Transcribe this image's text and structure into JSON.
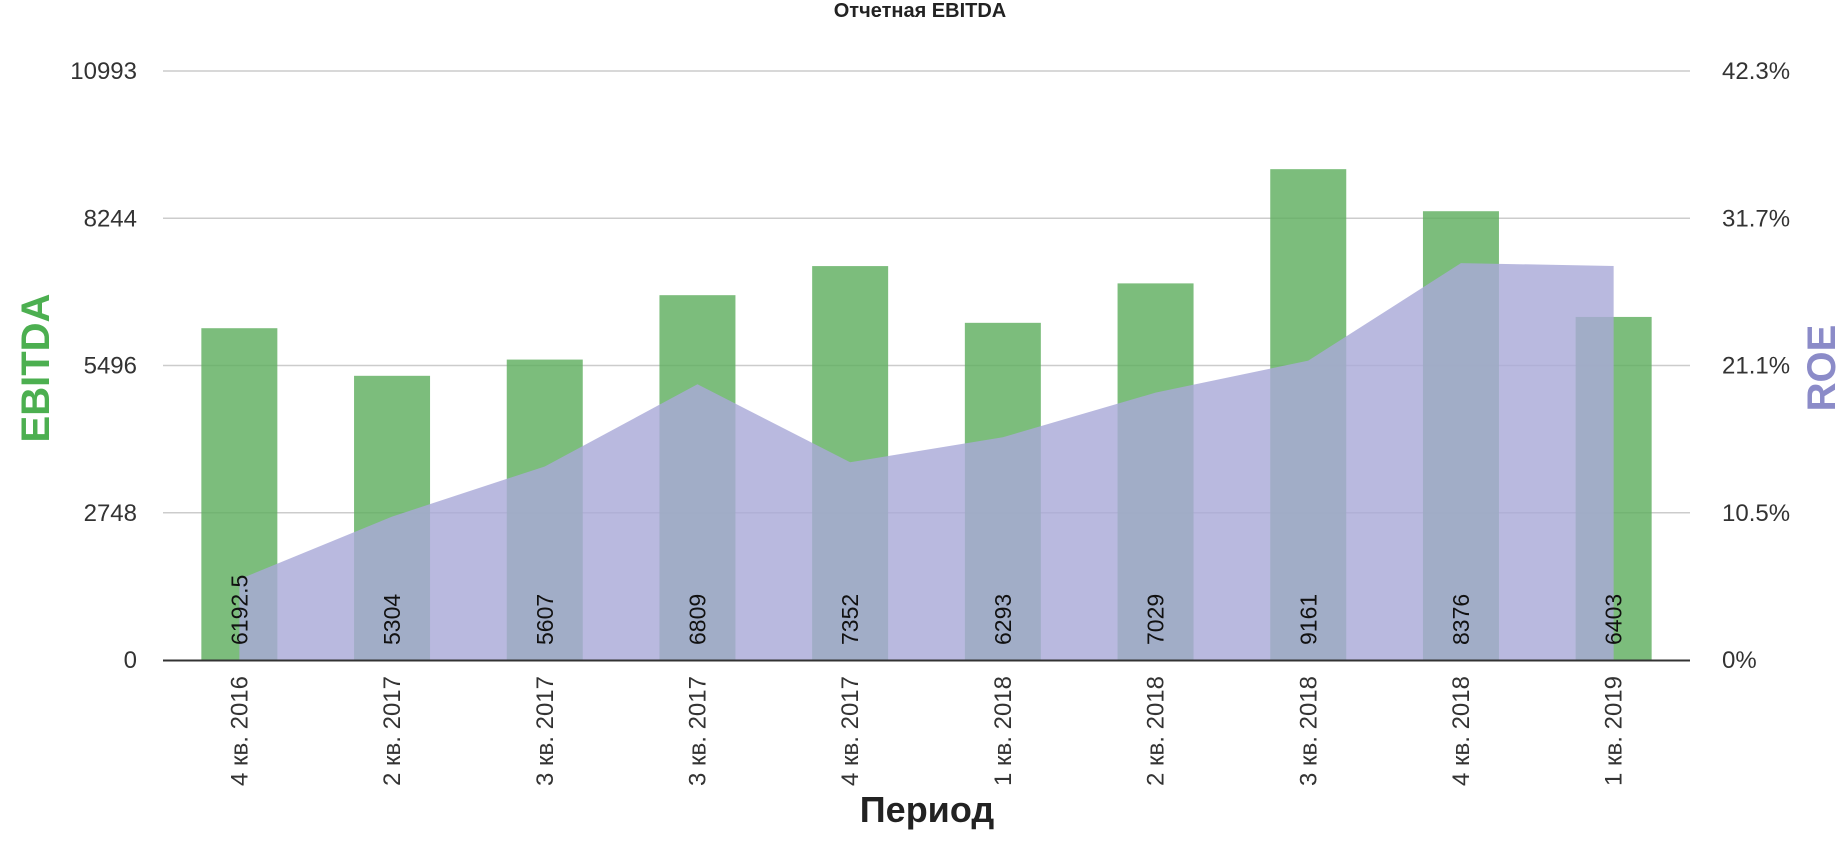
{
  "chart_data": {
    "type": "bar",
    "title": "Отчетная EBITDA",
    "xlabel": "Период",
    "ylabel": "EBITDA",
    "y2label": "ROE",
    "categories": [
      "4 кв. 2016",
      "2 кв. 2017",
      "3 кв. 2017",
      "3 кв. 2017",
      "4 кв. 2017",
      "1 кв. 2018",
      "2 кв. 2018",
      "3 кв. 2018",
      "4 кв. 2018",
      "1 кв. 2019"
    ],
    "series": [
      {
        "name": "EBITDA",
        "type": "bar",
        "axis": "left",
        "color": "#5fae5f",
        "values": [
          6192.5,
          5304,
          5607,
          6809,
          7352,
          6293,
          7029,
          9161,
          8376,
          6403
        ],
        "labels": [
          "6192.5",
          "5304",
          "5607",
          "6809",
          "7352",
          "6293",
          "7029",
          "9161",
          "8376",
          "6403"
        ]
      },
      {
        "name": "ROE",
        "type": "area",
        "axis": "right",
        "color": "#a9a9d8",
        "values": [
          5.8,
          10.3,
          13.9,
          19.8,
          14.2,
          16.0,
          19.2,
          21.5,
          28.5,
          28.3
        ]
      }
    ],
    "ylim": [
      0,
      10993
    ],
    "y2lim": [
      0,
      42.3
    ],
    "yticks": [
      "0",
      "2748",
      "5496",
      "8244",
      "10993"
    ],
    "y2ticks": [
      "0%",
      "10.5%",
      "21.1%",
      "31.7%",
      "42.3%"
    ],
    "grid": true,
    "legend": "none"
  },
  "colors": {
    "ebitda_axis_title": "#4caf50",
    "roe_axis_title": "#8b8bc8",
    "gridline": "#cccccc",
    "baseline": "#333333"
  }
}
